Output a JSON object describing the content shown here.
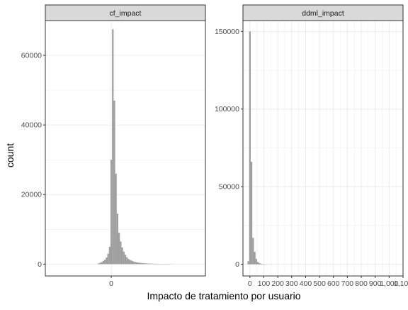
{
  "chart_data": {
    "type": "bar",
    "subtype": "faceted-histogram",
    "xlabel": "Impacto de tratamiento por usuario",
    "ylabel": "count",
    "colors": {
      "bar": "#9e9e9e",
      "strip": "#d9d9d9",
      "grid": "#ebebeb",
      "border": "#333333"
    },
    "grid": true,
    "panels": [
      {
        "strip": "cf_impact",
        "xlim": [
          -210,
          300
        ],
        "ylim": [
          -3400,
          70000
        ],
        "x_ticks": [
          0
        ],
        "x_tick_labels": [
          "0"
        ],
        "y_ticks": [
          0,
          20000,
          40000,
          60000
        ],
        "y_tick_labels": [
          "0",
          "20000",
          "40000",
          "60000"
        ],
        "bin_width": 5,
        "bins": [
          {
            "x": -40,
            "count": 200
          },
          {
            "x": -35,
            "count": 400
          },
          {
            "x": -30,
            "count": 600
          },
          {
            "x": -25,
            "count": 900
          },
          {
            "x": -20,
            "count": 1300
          },
          {
            "x": -15,
            "count": 1900
          },
          {
            "x": -10,
            "count": 3000
          },
          {
            "x": -5,
            "count": 5000
          },
          {
            "x": 0,
            "count": 30000
          },
          {
            "x": 5,
            "count": 67500
          },
          {
            "x": 10,
            "count": 47000
          },
          {
            "x": 15,
            "count": 26000
          },
          {
            "x": 20,
            "count": 14500
          },
          {
            "x": 25,
            "count": 9000
          },
          {
            "x": 30,
            "count": 6500
          },
          {
            "x": 35,
            "count": 4800
          },
          {
            "x": 40,
            "count": 3600
          },
          {
            "x": 45,
            "count": 2700
          },
          {
            "x": 50,
            "count": 2000
          },
          {
            "x": 55,
            "count": 1500
          },
          {
            "x": 60,
            "count": 1200
          },
          {
            "x": 65,
            "count": 1000
          },
          {
            "x": 70,
            "count": 800
          },
          {
            "x": 75,
            "count": 650
          },
          {
            "x": 80,
            "count": 550
          },
          {
            "x": 85,
            "count": 450
          },
          {
            "x": 90,
            "count": 380
          },
          {
            "x": 95,
            "count": 320
          },
          {
            "x": 100,
            "count": 280
          },
          {
            "x": 105,
            "count": 240
          },
          {
            "x": 110,
            "count": 210
          },
          {
            "x": 115,
            "count": 180
          },
          {
            "x": 120,
            "count": 160
          },
          {
            "x": 125,
            "count": 140
          },
          {
            "x": 130,
            "count": 120
          },
          {
            "x": 135,
            "count": 110
          },
          {
            "x": 140,
            "count": 100
          },
          {
            "x": 145,
            "count": 90
          },
          {
            "x": 150,
            "count": 80
          },
          {
            "x": 155,
            "count": 70
          },
          {
            "x": 160,
            "count": 60
          },
          {
            "x": 165,
            "count": 55
          },
          {
            "x": 170,
            "count": 50
          },
          {
            "x": 175,
            "count": 45
          },
          {
            "x": 180,
            "count": 40
          },
          {
            "x": 185,
            "count": 35
          },
          {
            "x": 190,
            "count": 30
          },
          {
            "x": 195,
            "count": 25
          }
        ]
      },
      {
        "strip": "ddml_impact",
        "xlim": [
          -50,
          1100
        ],
        "ylim": [
          -7500,
          157000
        ],
        "x_ticks": [
          0,
          100,
          200,
          300,
          400,
          500,
          600,
          700,
          800,
          900,
          1000,
          1100
        ],
        "x_tick_labels": [
          "0",
          "100",
          "200",
          "300",
          "400",
          "500",
          "600",
          "700",
          "800",
          "900",
          "1,000",
          "1,100"
        ],
        "x_minor_ticks": [
          50,
          150,
          250,
          350,
          450,
          550,
          650,
          750,
          850,
          950,
          1050
        ],
        "y_ticks": [
          0,
          50000,
          100000,
          150000
        ],
        "y_tick_labels": [
          "0",
          "50000",
          "100000",
          "150000"
        ],
        "bin_width": 11.5,
        "bins": [
          {
            "x": -11.5,
            "count": 2000
          },
          {
            "x": 0,
            "count": 150000
          },
          {
            "x": 11.5,
            "count": 66000
          },
          {
            "x": 23,
            "count": 17000
          },
          {
            "x": 34.5,
            "count": 8000
          },
          {
            "x": 46,
            "count": 3500
          },
          {
            "x": 57.5,
            "count": 1500
          },
          {
            "x": 69,
            "count": 700
          },
          {
            "x": 80.5,
            "count": 350
          },
          {
            "x": 92,
            "count": 200
          },
          {
            "x": 103.5,
            "count": 120
          },
          {
            "x": 115,
            "count": 80
          },
          {
            "x": 126.5,
            "count": 50
          },
          {
            "x": 138,
            "count": 30
          }
        ]
      }
    ]
  }
}
